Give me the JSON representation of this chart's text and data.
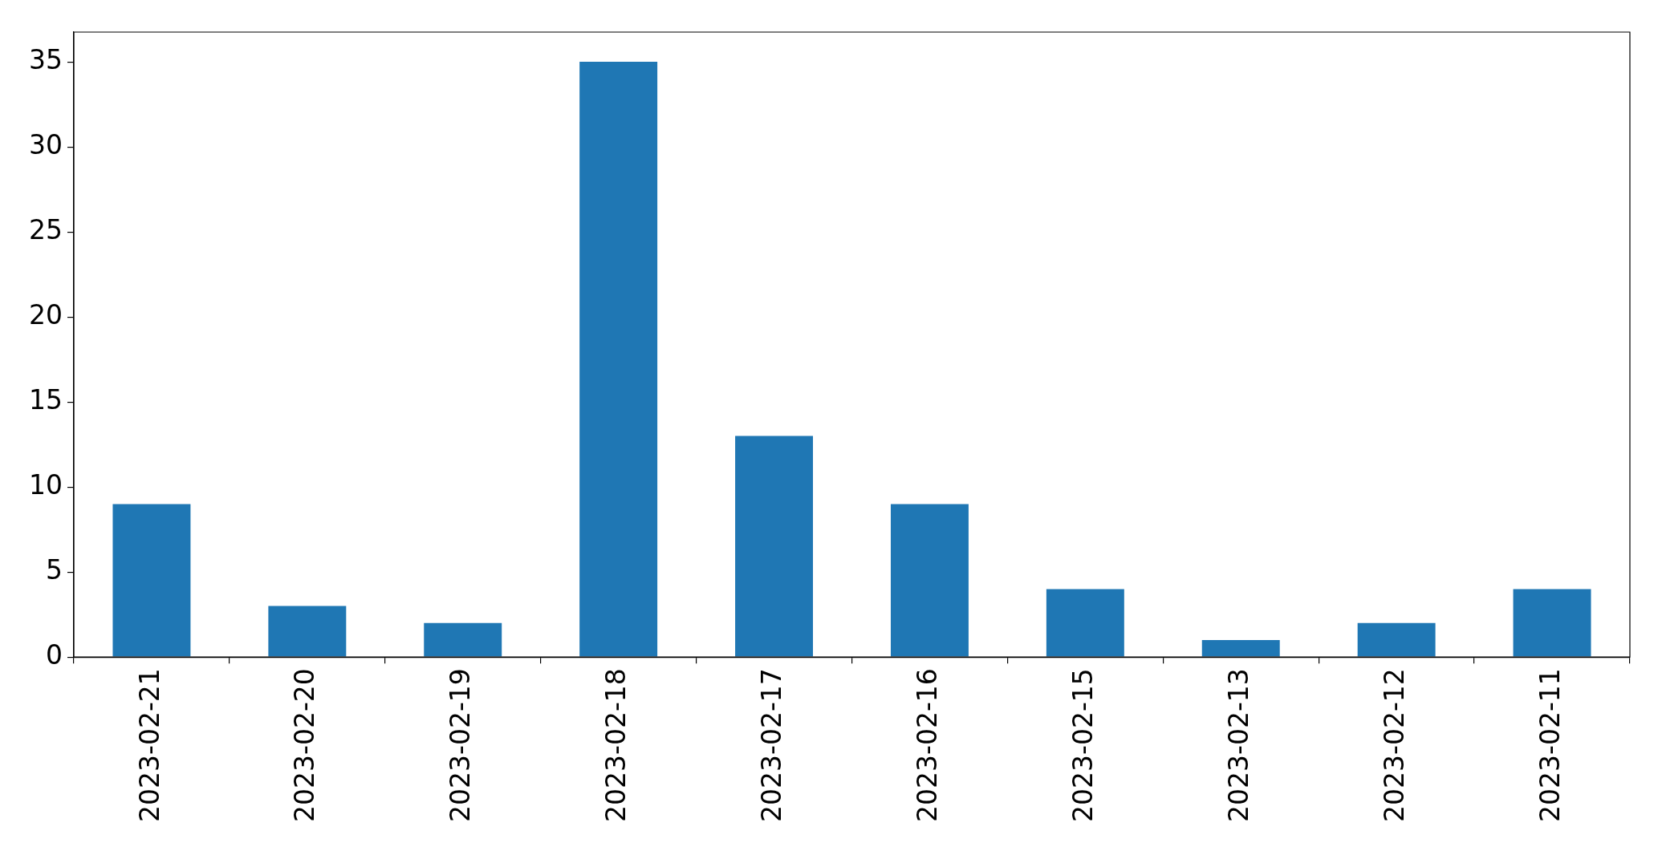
{
  "chart_data": {
    "type": "bar",
    "categories": [
      "2023-02-21",
      "2023-02-20",
      "2023-02-19",
      "2023-02-18",
      "2023-02-17",
      "2023-02-16",
      "2023-02-15",
      "2023-02-13",
      "2023-02-12",
      "2023-02-11"
    ],
    "values": [
      9,
      3,
      2,
      35,
      13,
      9,
      4,
      1,
      2,
      4
    ],
    "color": "#1f77b4",
    "ylim": [
      0,
      36.75
    ],
    "yticks": [
      0,
      5,
      10,
      15,
      20,
      25,
      30,
      35
    ]
  }
}
